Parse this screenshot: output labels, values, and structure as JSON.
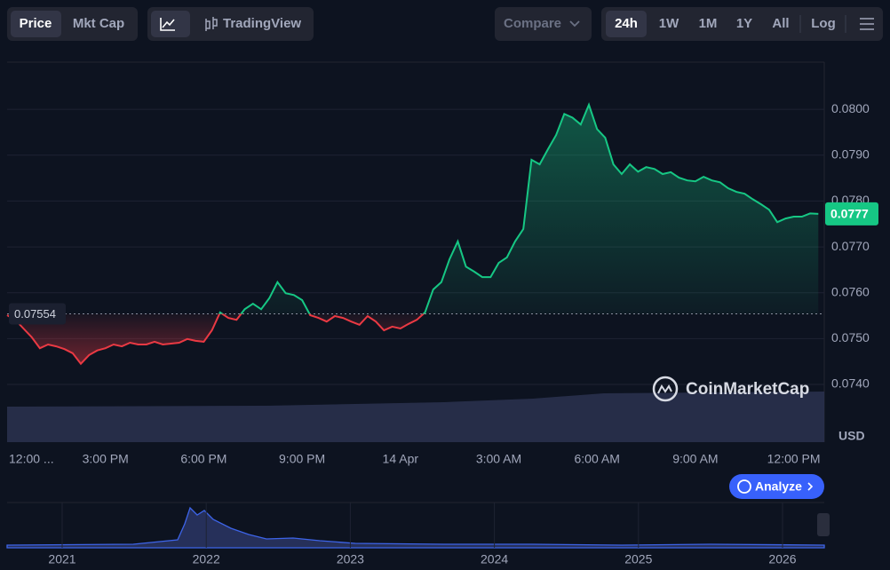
{
  "toolbar": {
    "view": [
      "Price",
      "Mkt Cap"
    ],
    "tradingview": "TradingView",
    "compare": "Compare",
    "ranges": [
      "24h",
      "1W",
      "1M",
      "1Y",
      "All"
    ],
    "log": "Log"
  },
  "watermark": "CoinMarketCap",
  "analyze": "Analyze",
  "navigator": {
    "years": [
      "2021",
      "2022",
      "2023",
      "2024",
      "2025",
      "2026"
    ]
  },
  "chart_data": {
    "type": "line",
    "currency": "USD",
    "categories": [
      "12:00 ...",
      null,
      null,
      null,
      null,
      null,
      null,
      null,
      null,
      null,
      null,
      null,
      "3:00 PM",
      null,
      null,
      null,
      null,
      null,
      null,
      null,
      null,
      null,
      null,
      null,
      "6:00 PM",
      null,
      null,
      null,
      null,
      null,
      null,
      null,
      null,
      null,
      null,
      null,
      "9:00 PM",
      null,
      null,
      null,
      null,
      null,
      null,
      null,
      null,
      null,
      null,
      null,
      "14 Apr",
      null,
      null,
      null,
      null,
      null,
      null,
      null,
      null,
      null,
      null,
      null,
      "3:00 AM",
      null,
      null,
      null,
      null,
      null,
      null,
      null,
      null,
      null,
      null,
      null,
      "6:00 AM",
      null,
      null,
      null,
      null,
      null,
      null,
      null,
      null,
      null,
      null,
      null,
      "9:00 AM",
      null,
      null,
      null,
      null,
      null,
      null,
      null,
      null,
      null,
      null,
      null,
      "12:00 PM",
      null,
      null,
      null
    ],
    "values": [
      0.07551,
      0.07541,
      0.07522,
      0.07503,
      0.07479,
      0.07487,
      0.07483,
      0.07477,
      0.07468,
      0.07445,
      0.07464,
      0.07474,
      0.07479,
      0.07487,
      0.07483,
      0.07491,
      0.07487,
      0.07487,
      0.07493,
      0.07487,
      0.07489,
      0.07491,
      0.07499,
      0.07495,
      0.07493,
      0.07518,
      0.07557,
      0.07545,
      0.07541,
      0.07564,
      0.07576,
      0.07564,
      0.07588,
      0.07623,
      0.07599,
      0.07595,
      0.07584,
      0.07551,
      0.07545,
      0.07537,
      0.07549,
      0.07545,
      0.07537,
      0.0753,
      0.07549,
      0.07537,
      0.07518,
      0.07526,
      0.07522,
      0.07532,
      0.07541,
      0.07557,
      0.07607,
      0.07623,
      0.07673,
      0.07712,
      0.07657,
      0.07646,
      0.07634,
      0.07634,
      0.07665,
      0.07677,
      0.07712,
      0.07739,
      0.0789,
      0.0788,
      0.07913,
      0.07944,
      0.0799,
      0.07982,
      0.07967,
      0.0801,
      0.07957,
      0.07938,
      0.0788,
      0.07859,
      0.0788,
      0.07864,
      0.07874,
      0.0787,
      0.07859,
      0.07863,
      0.07851,
      0.07845,
      0.07843,
      0.07853,
      0.07845,
      0.07841,
      0.07828,
      0.0782,
      0.07816,
      0.07804,
      0.07793,
      0.07781,
      0.07754,
      0.07762,
      0.07766,
      0.07766,
      0.07773,
      0.07772
    ],
    "current_price_label": "0.0777",
    "baseline": 0.07554,
    "up_color": "#16c784",
    "down_color": "#ea3943",
    "ylim": [
      0.07274,
      0.08103
    ],
    "yticks": [
      {
        "value": 0.074,
        "label": "0.0740"
      },
      {
        "value": 0.075,
        "label": "0.0750"
      },
      {
        "value": 0.076,
        "label": "0.0760"
      },
      {
        "value": 0.077,
        "label": "0.0770"
      },
      {
        "value": 0.078,
        "label": "0.0780"
      },
      {
        "value": 0.079,
        "label": "0.0790"
      },
      {
        "value": 0.08,
        "label": "0.0800"
      }
    ],
    "grid": true
  }
}
